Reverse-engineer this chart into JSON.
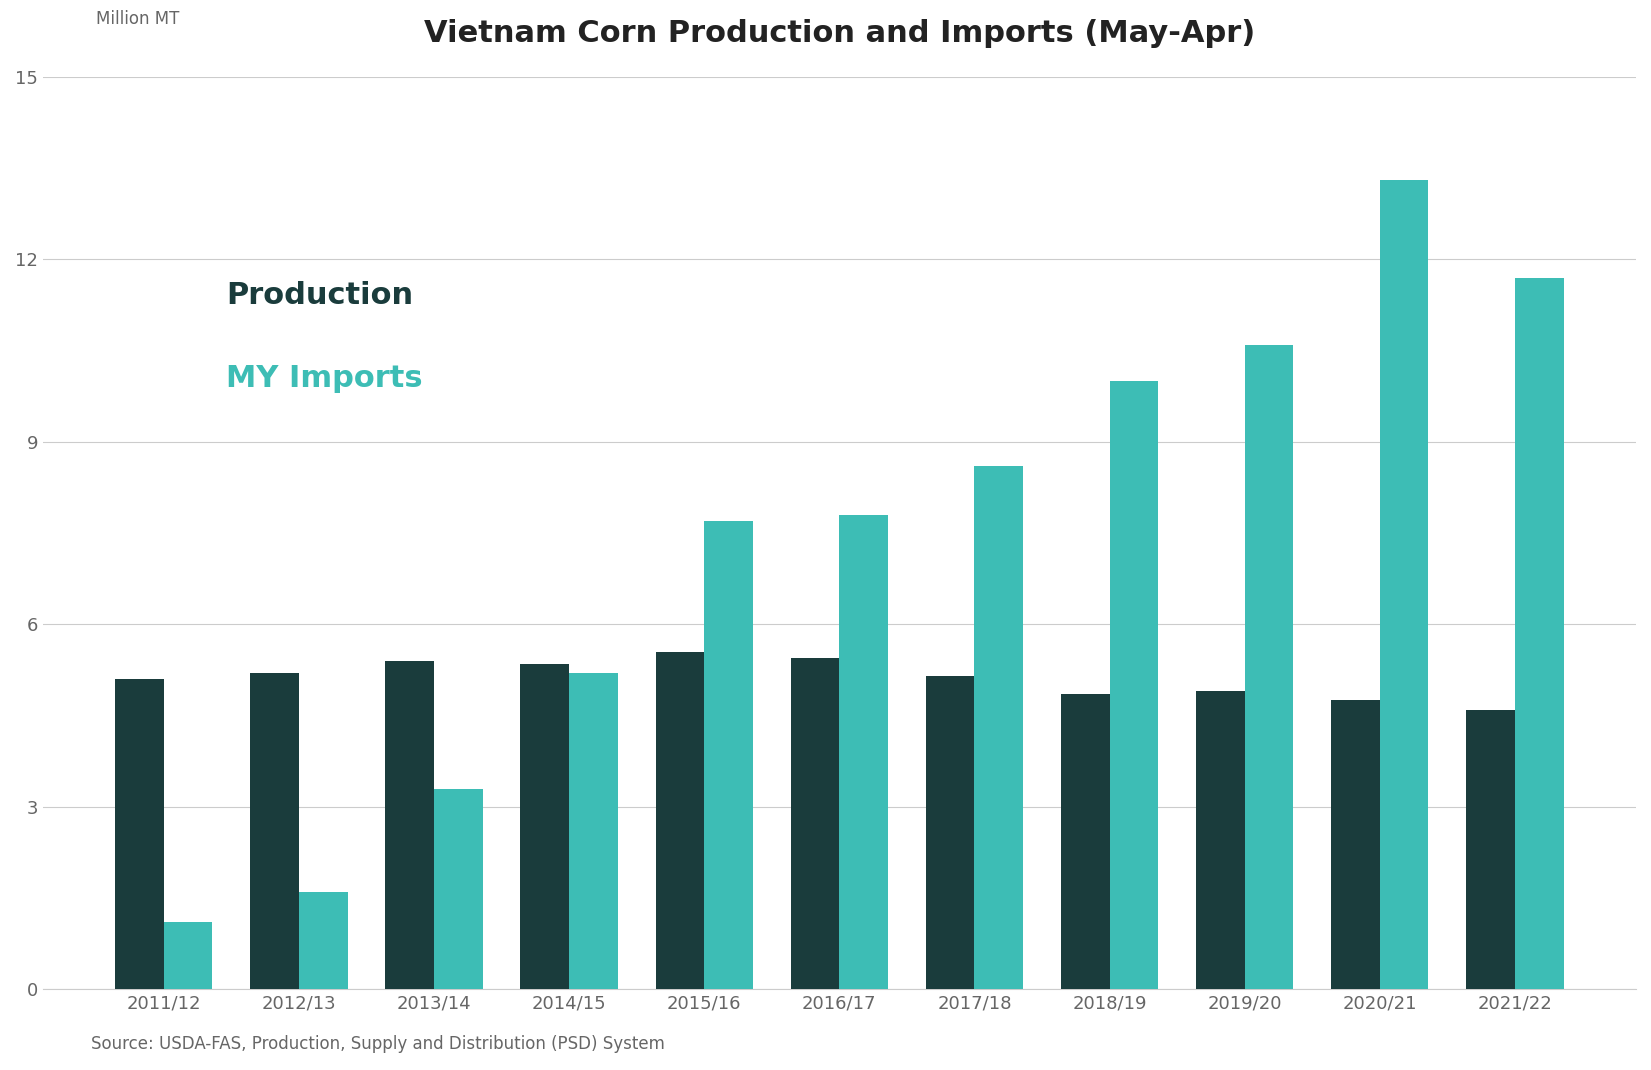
{
  "title": "Vietnam Corn Production and Imports (May-Apr)",
  "ylabel": "Million MT",
  "source": "Source: USDA-FAS, Production, Supply and Distribution (PSD) System",
  "categories": [
    "2011/12",
    "2012/13",
    "2013/14",
    "2014/15",
    "2015/16",
    "2016/17",
    "2017/18",
    "2018/19",
    "2019/20",
    "2020/21",
    "2021/22"
  ],
  "production": [
    5.1,
    5.2,
    5.4,
    5.35,
    5.55,
    5.45,
    5.15,
    4.85,
    4.9,
    4.75,
    4.6
  ],
  "imports": [
    1.1,
    1.6,
    3.3,
    5.2,
    7.7,
    7.8,
    8.6,
    10.0,
    10.6,
    13.3,
    11.7
  ],
  "prod_color": "#1a3c3c",
  "import_color": "#3dbdb5",
  "background_color": "#ffffff",
  "ylim": [
    0,
    15
  ],
  "yticks": [
    0,
    3,
    6,
    9,
    12,
    15
  ],
  "bar_width": 0.36,
  "legend_prod_label": "Production",
  "legend_import_label": "MY Imports",
  "title_fontsize": 22,
  "label_fontsize": 12,
  "tick_fontsize": 13,
  "source_fontsize": 12,
  "legend_fontsize": 22,
  "tick_color": "#666666",
  "grid_color": "#cccccc",
  "title_color": "#222222"
}
